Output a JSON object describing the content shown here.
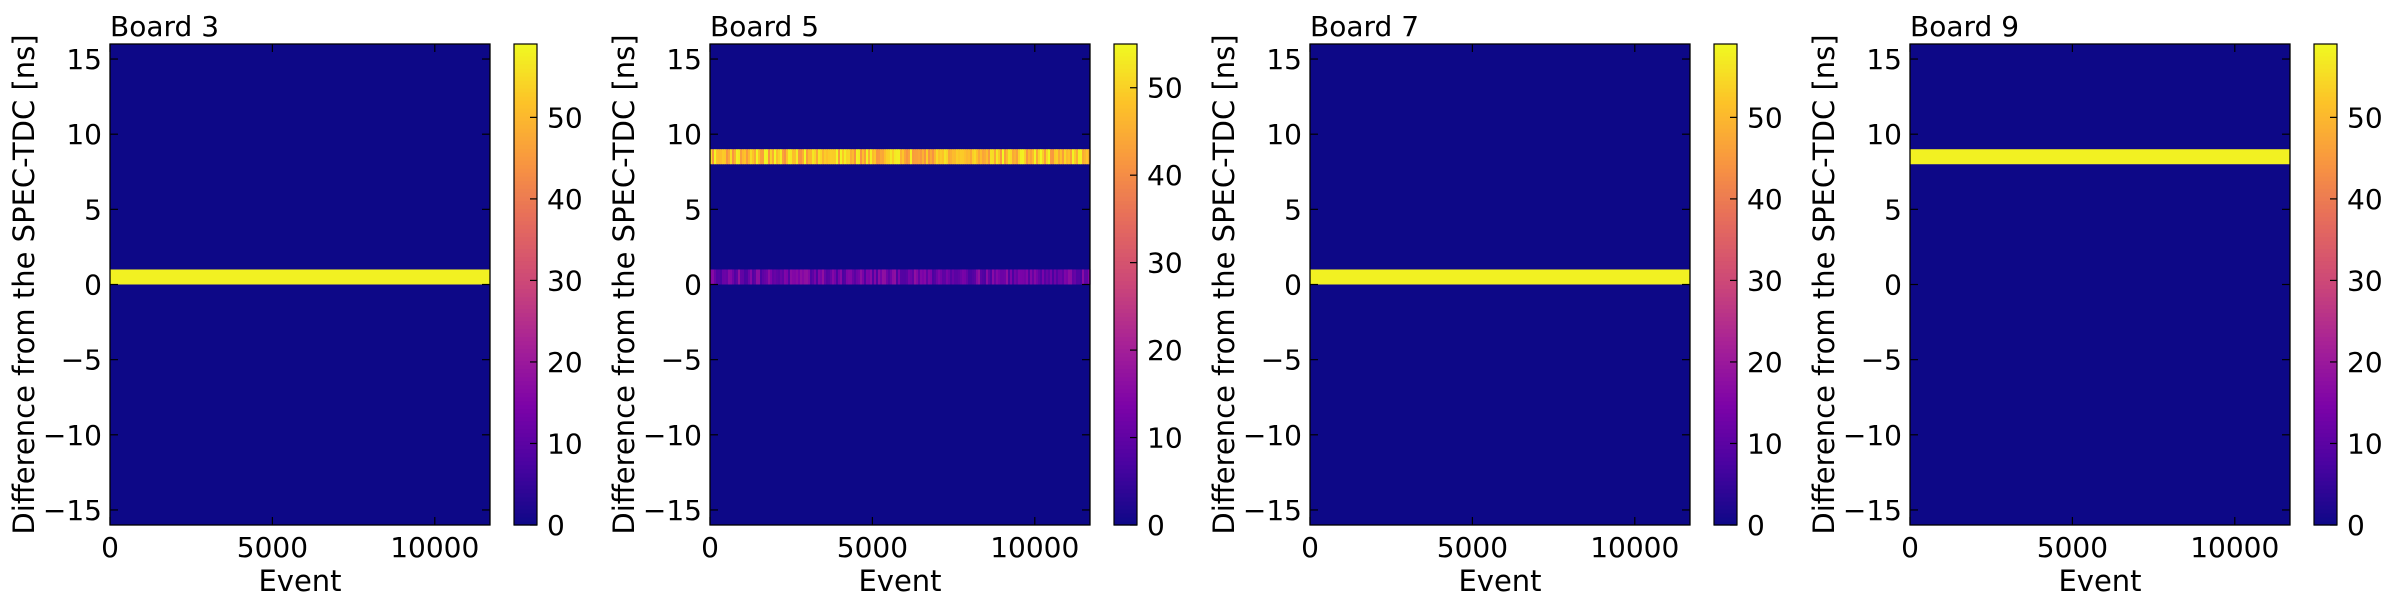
{
  "chart_data": [
    {
      "type": "heatmap",
      "title": "Board 3",
      "xlabel": "Event",
      "ylabel": "Difference from the SPEC-TDC [ns]",
      "xlim": [
        0,
        11700
      ],
      "ylim": [
        -16,
        16
      ],
      "xticks": [
        0,
        5000,
        10000
      ],
      "yticks": [
        -15,
        -10,
        -5,
        0,
        5,
        10,
        15
      ],
      "colorbar": {
        "range": [
          0,
          59
        ],
        "ticks": [
          0,
          10,
          20,
          30,
          40,
          50
        ],
        "colormap": "plasma"
      },
      "bands": [
        {
          "y_low": 0,
          "y_high": 1,
          "value": 58,
          "variation": 0
        }
      ]
    },
    {
      "type": "heatmap",
      "title": "Board 5",
      "xlabel": "Event",
      "ylabel": "Difference from the SPEC-TDC [ns]",
      "xlim": [
        0,
        11700
      ],
      "ylim": [
        -16,
        16
      ],
      "xticks": [
        0,
        5000,
        10000
      ],
      "yticks": [
        -15,
        -10,
        -5,
        0,
        5,
        10,
        15
      ],
      "colorbar": {
        "range": [
          0,
          55
        ],
        "ticks": [
          0,
          10,
          20,
          30,
          40,
          50
        ],
        "colormap": "plasma"
      },
      "bands": [
        {
          "y_low": 8,
          "y_high": 9,
          "value": 48,
          "variation": 7
        },
        {
          "y_low": 0,
          "y_high": 1,
          "value": 12,
          "variation": 5
        }
      ]
    },
    {
      "type": "heatmap",
      "title": "Board 7",
      "xlabel": "Event",
      "ylabel": "Difference from the SPEC-TDC [ns]",
      "xlim": [
        0,
        11700
      ],
      "ylim": [
        -16,
        16
      ],
      "xticks": [
        0,
        5000,
        10000
      ],
      "yticks": [
        -15,
        -10,
        -5,
        0,
        5,
        10,
        15
      ],
      "colorbar": {
        "range": [
          0,
          59
        ],
        "ticks": [
          0,
          10,
          20,
          30,
          40,
          50
        ],
        "colormap": "plasma"
      },
      "bands": [
        {
          "y_low": 0,
          "y_high": 1,
          "value": 58,
          "variation": 0
        }
      ]
    },
    {
      "type": "heatmap",
      "title": "Board 9",
      "xlabel": "Event",
      "ylabel": "Difference from the SPEC-TDC [ns]",
      "xlim": [
        0,
        11700
      ],
      "ylim": [
        -16,
        16
      ],
      "xticks": [
        0,
        5000,
        10000
      ],
      "yticks": [
        -15,
        -10,
        -5,
        0,
        5,
        10,
        15
      ],
      "colorbar": {
        "range": [
          0,
          59
        ],
        "ticks": [
          0,
          10,
          20,
          30,
          40,
          50
        ],
        "colormap": "plasma"
      },
      "bands": [
        {
          "y_low": 8,
          "y_high": 9,
          "value": 58,
          "variation": 0
        }
      ]
    }
  ]
}
